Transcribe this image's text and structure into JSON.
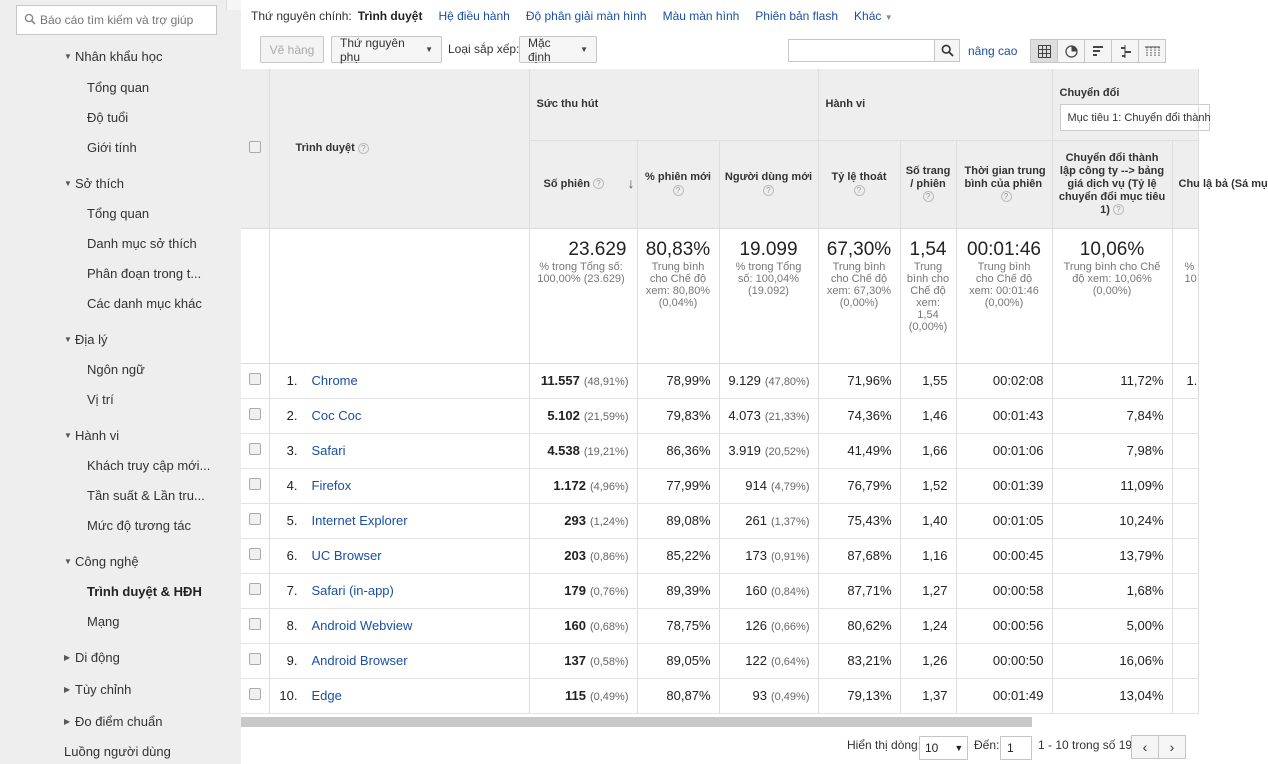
{
  "sidebar": {
    "search_placeholder": "Báo cáo tìm kiếm và trợ giúp",
    "categories": [
      {
        "label": "Nhân khẩu học"
      },
      {
        "label": "Sở thích"
      },
      {
        "label": "Địa lý"
      },
      {
        "label": "Hành vi"
      },
      {
        "label": "Công nghệ"
      },
      {
        "label": "Di động"
      },
      {
        "label": "Tùy chỉnh"
      },
      {
        "label": "Đo điểm chuẩn"
      }
    ],
    "items": [
      "Tổng quan",
      "Độ tuổi",
      "Giới tính",
      "Tổng quan",
      "Danh mục sở thích",
      "Phân đoạn trong t...",
      "Các danh mục khác",
      "Ngôn ngữ",
      "Vị trí",
      "Khách truy cập mới...",
      "Tần suất & Lần tru...",
      "Mức độ tương tác",
      "Trình duyệt & HĐH",
      "Mạng"
    ],
    "bottom": "Luồng người dùng"
  },
  "dimensions": {
    "label": "Thứ nguyên chính:",
    "current": "Trình duyệt",
    "links": [
      "Hệ điều hành",
      "Độ phân giải màn hình",
      "Màu màn hình",
      "Phiên bản flash"
    ],
    "more": "Khác"
  },
  "toolbar": {
    "plot_rows": "Vẽ hàng",
    "secondary_dim": "Thứ nguyên phụ",
    "sort_label": "Loại sắp xếp:",
    "sort_value": "Mặc định",
    "advanced": "nâng cao"
  },
  "table": {
    "col_browser": "Trình duyệt",
    "group_acq": "Sức thu hút",
    "group_beh": "Hành vi",
    "group_conv": "Chuyển đổi",
    "goal_select": "Mục tiêu 1: Chuyển đổi thành",
    "cols": {
      "sessions": "Số phiên",
      "new_sessions": "% phiên mới",
      "new_users": "Người dùng mới",
      "bounce": "Tỷ lệ thoát",
      "pages": "Số trang / phiên",
      "duration": "Thời gian trung bình của phiên",
      "conv": "Chuyển đổi thành lập công ty --> bảng giá dịch vụ (Tỷ lệ chuyển đổi mục tiêu 1)",
      "conv2": "Chu lậ bả (Sá mụ"
    },
    "totals": {
      "sessions": "23.629",
      "sessions_sub": "% trong Tổng số: 100,00% (23.629)",
      "new_sessions": "80,83%",
      "new_sessions_sub": "Trung bình cho Chế độ xem: 80,80% (0,04%)",
      "new_users": "19.099",
      "new_users_sub": "% trong Tổng số: 100,04% (19.092)",
      "bounce": "67,30%",
      "bounce_sub": "Trung bình cho Chế độ xem: 67,30% (0,00%)",
      "pages": "1,54",
      "pages_sub": "Trung bình cho Chế độ xem: 1,54 (0,00%)",
      "duration": "00:01:46",
      "duration_sub": "Trung bình cho Chế độ xem: 00:01:46 (0,00%)",
      "conv": "10,06%",
      "conv_sub": "Trung bình cho Chế độ xem: 10,06% (0,00%)",
      "conv2_sub": "% 10"
    },
    "rows": [
      {
        "idx": "1.",
        "browser": "Chrome",
        "sessions": "11.557",
        "sessions_pct": "(48,91%)",
        "new_sessions": "78,99%",
        "new_users": "9.129",
        "new_users_pct": "(47,80%)",
        "bounce": "71,96%",
        "pages": "1,55",
        "duration": "00:02:08",
        "conv": "11,72%",
        "extra": "1."
      },
      {
        "idx": "2.",
        "browser": "Coc Coc",
        "sessions": "5.102",
        "sessions_pct": "(21,59%)",
        "new_sessions": "79,83%",
        "new_users": "4.073",
        "new_users_pct": "(21,33%)",
        "bounce": "74,36%",
        "pages": "1,46",
        "duration": "00:01:43",
        "conv": "7,84%",
        "extra": ""
      },
      {
        "idx": "3.",
        "browser": "Safari",
        "sessions": "4.538",
        "sessions_pct": "(19,21%)",
        "new_sessions": "86,36%",
        "new_users": "3.919",
        "new_users_pct": "(20,52%)",
        "bounce": "41,49%",
        "pages": "1,66",
        "duration": "00:01:06",
        "conv": "7,98%",
        "extra": ""
      },
      {
        "idx": "4.",
        "browser": "Firefox",
        "sessions": "1.172",
        "sessions_pct": "(4,96%)",
        "new_sessions": "77,99%",
        "new_users": "914",
        "new_users_pct": "(4,79%)",
        "bounce": "76,79%",
        "pages": "1,52",
        "duration": "00:01:39",
        "conv": "11,09%",
        "extra": ""
      },
      {
        "idx": "5.",
        "browser": "Internet Explorer",
        "sessions": "293",
        "sessions_pct": "(1,24%)",
        "new_sessions": "89,08%",
        "new_users": "261",
        "new_users_pct": "(1,37%)",
        "bounce": "75,43%",
        "pages": "1,40",
        "duration": "00:01:05",
        "conv": "10,24%",
        "extra": ""
      },
      {
        "idx": "6.",
        "browser": "UC Browser",
        "sessions": "203",
        "sessions_pct": "(0,86%)",
        "new_sessions": "85,22%",
        "new_users": "173",
        "new_users_pct": "(0,91%)",
        "bounce": "87,68%",
        "pages": "1,16",
        "duration": "00:00:45",
        "conv": "13,79%",
        "extra": ""
      },
      {
        "idx": "7.",
        "browser": "Safari (in-app)",
        "sessions": "179",
        "sessions_pct": "(0,76%)",
        "new_sessions": "89,39%",
        "new_users": "160",
        "new_users_pct": "(0,84%)",
        "bounce": "87,71%",
        "pages": "1,27",
        "duration": "00:00:58",
        "conv": "1,68%",
        "extra": ""
      },
      {
        "idx": "8.",
        "browser": "Android Webview",
        "sessions": "160",
        "sessions_pct": "(0,68%)",
        "new_sessions": "78,75%",
        "new_users": "126",
        "new_users_pct": "(0,66%)",
        "bounce": "80,62%",
        "pages": "1,24",
        "duration": "00:00:56",
        "conv": "5,00%",
        "extra": ""
      },
      {
        "idx": "9.",
        "browser": "Android Browser",
        "sessions": "137",
        "sessions_pct": "(0,58%)",
        "new_sessions": "89,05%",
        "new_users": "122",
        "new_users_pct": "(0,64%)",
        "bounce": "83,21%",
        "pages": "1,26",
        "duration": "00:00:50",
        "conv": "16,06%",
        "extra": ""
      },
      {
        "idx": "10.",
        "browser": "Edge",
        "sessions": "115",
        "sessions_pct": "(0,49%)",
        "new_sessions": "80,87%",
        "new_users": "93",
        "new_users_pct": "(0,49%)",
        "bounce": "79,13%",
        "pages": "1,37",
        "duration": "00:01:49",
        "conv": "13,04%",
        "extra": ""
      }
    ]
  },
  "pager": {
    "show_rows_label": "Hiển thị dòng:",
    "show_rows_value": "10",
    "goto_label": "Đến:",
    "goto_value": "1",
    "range": "1 - 10 trong số 19"
  },
  "colors": {
    "link": "#1a4fa3",
    "sidebar_bg": "#eeeeee",
    "header_bg": "#eeeeee"
  }
}
